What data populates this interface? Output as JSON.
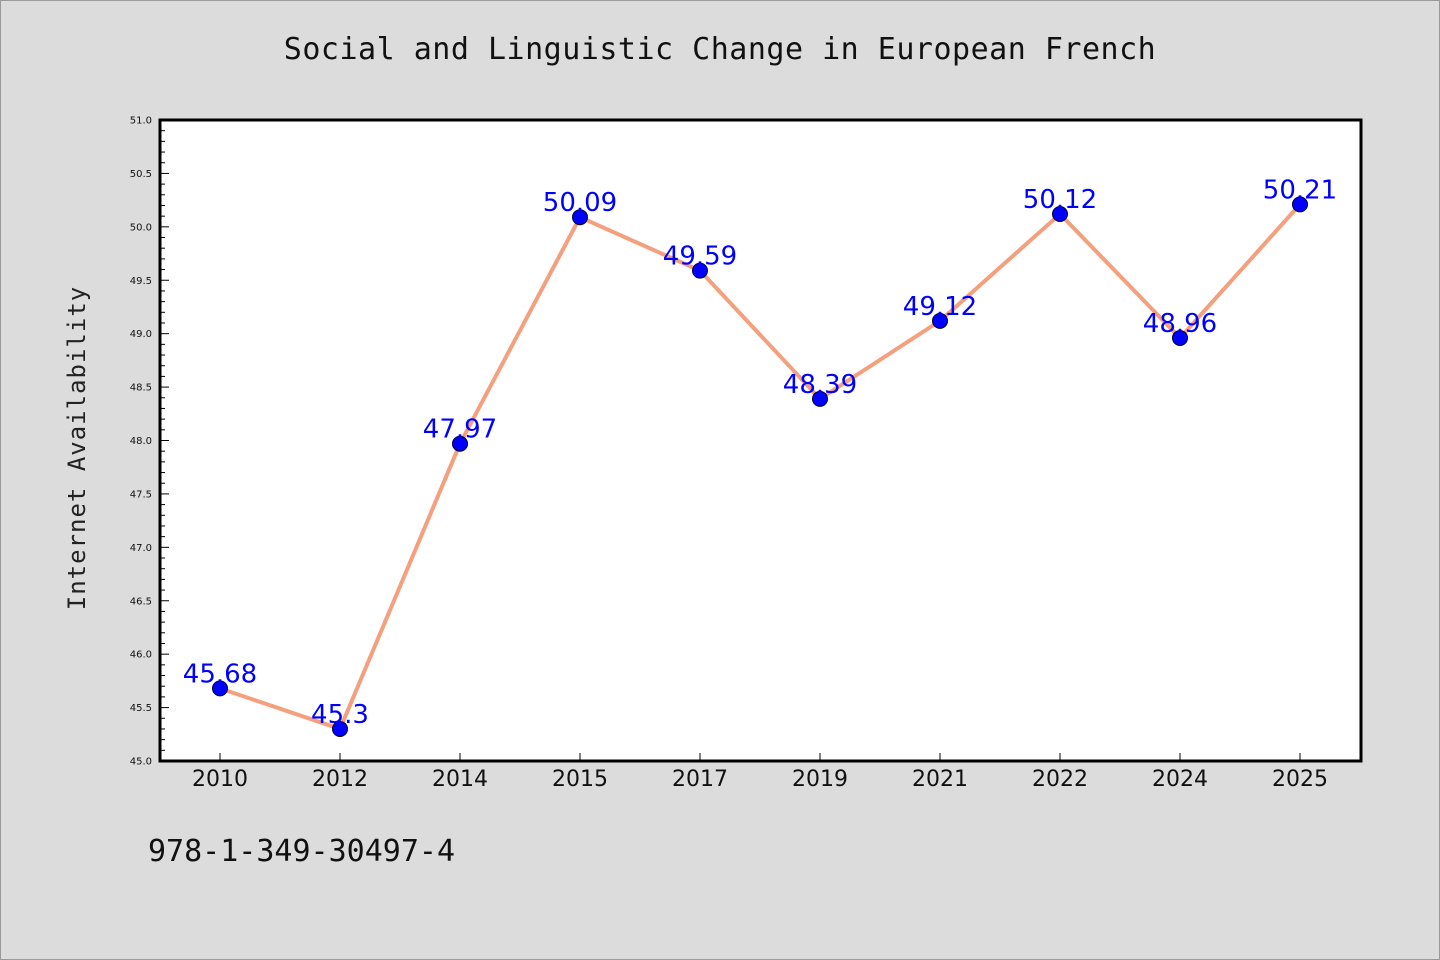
{
  "colors": {
    "background": "#dcdcdc",
    "plot_background": "#ffffff",
    "line": "#f4a07e",
    "marker": "#0000ff",
    "data_label": "#0000ff"
  },
  "footer": {
    "isbn": "978-1-349-30497-4"
  },
  "chart_data": {
    "type": "line",
    "title": "Social and Linguistic Change in European French",
    "xlabel": "",
    "ylabel": "Internet Availability",
    "categories": [
      "2010",
      "2012",
      "2014",
      "2015",
      "2017",
      "2019",
      "2021",
      "2022",
      "2024",
      "2025"
    ],
    "series": [
      {
        "values": [
          45.68,
          45.3,
          47.97,
          50.09,
          49.59,
          48.39,
          49.12,
          50.12,
          48.96,
          50.21
        ]
      }
    ],
    "data_labels": [
      "45.68",
      "45.3",
      "47.97",
      "50.09",
      "49.59",
      "48.39",
      "49.12",
      "50.12",
      "48.96",
      "50.21"
    ],
    "ylim": [
      45.0,
      51.0
    ],
    "yticks": [
      "45.0",
      "45.5",
      "46.0",
      "46.5",
      "47.0",
      "47.5",
      "48.0",
      "48.5",
      "49.0",
      "49.5",
      "50.0",
      "50.5",
      "51.0"
    ],
    "grid": false,
    "legend": "none"
  }
}
